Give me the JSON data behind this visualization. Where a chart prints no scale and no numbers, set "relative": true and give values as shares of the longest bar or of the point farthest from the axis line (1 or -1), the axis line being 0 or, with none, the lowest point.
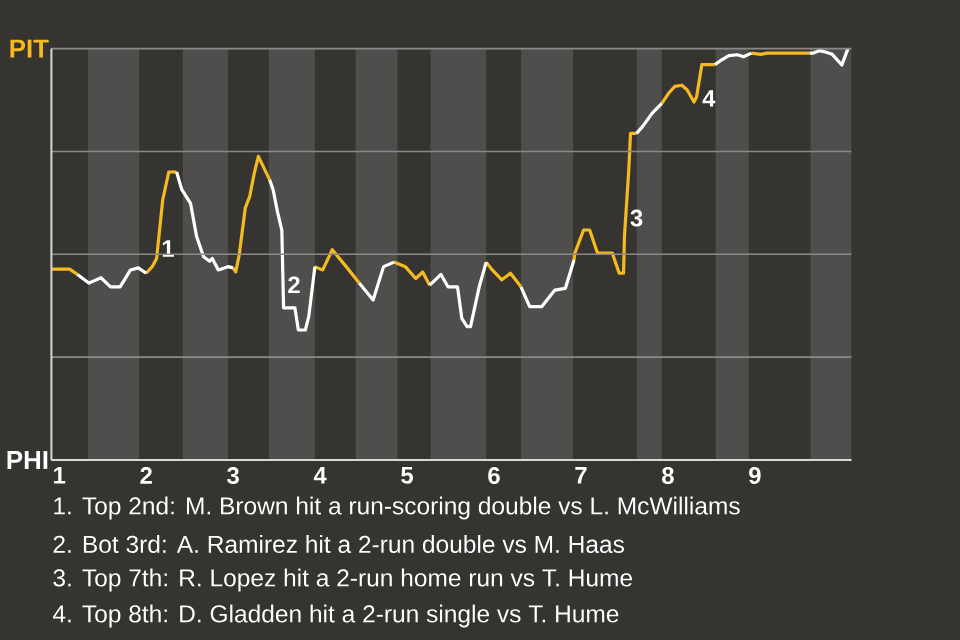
{
  "chart_data": {
    "type": "line",
    "relative": true,
    "xlim": [
      0.91,
      10.11
    ],
    "xticks": [
      1,
      2,
      3,
      4,
      5,
      6,
      7,
      8,
      9
    ],
    "grid": "y",
    "bands": [
      {
        "axis": "x",
        "from": 1.33,
        "to": 1.92,
        "color": "#4f4e4c"
      },
      {
        "axis": "x",
        "from": 2.42,
        "to": 2.94,
        "color": "#4f4e4c"
      },
      {
        "axis": "x",
        "from": 3.41,
        "to": 3.94,
        "color": "#4f4e4c"
      },
      {
        "axis": "x",
        "from": 4.41,
        "to": 4.89,
        "color": "#4f4e4c"
      },
      {
        "axis": "x",
        "from": 5.27,
        "to": 5.91,
        "color": "#4f4e4c"
      },
      {
        "axis": "x",
        "from": 6.31,
        "to": 6.91,
        "color": "#4f4e4c"
      },
      {
        "axis": "x",
        "from": 7.64,
        "to": 7.93,
        "color": "#4f4e4c"
      },
      {
        "axis": "x",
        "from": 8.55,
        "to": 8.93,
        "color": "#4f4e4c"
      },
      {
        "axis": "x",
        "from": 9.64,
        "to": 10.11,
        "color": "#4f4e4c"
      }
    ],
    "x": [
      0.91,
      1.12,
      1.21,
      1.34,
      1.48,
      1.59,
      1.7,
      1.82,
      1.91,
      2.0,
      2.07,
      2.12,
      2.19,
      2.26,
      2.35,
      2.41,
      2.51,
      2.58,
      2.66,
      2.73,
      2.76,
      2.83,
      2.94,
      3.0,
      3.03,
      3.07,
      3.14,
      3.19,
      3.24,
      3.29,
      3.34,
      3.42,
      3.46,
      3.51,
      3.56,
      3.58,
      3.71,
      3.75,
      3.83,
      3.87,
      3.94,
      3.97,
      4.03,
      4.14,
      4.3,
      4.45,
      4.61,
      4.73,
      4.85,
      4.98,
      5.1,
      5.18,
      5.26,
      5.34,
      5.39,
      5.47,
      5.58,
      5.63,
      5.69,
      5.73,
      5.83,
      5.91,
      5.98,
      6.09,
      6.19,
      6.31,
      6.41,
      6.55,
      6.7,
      6.82,
      6.92,
      6.93,
      7.03,
      7.1,
      7.19,
      7.36,
      7.44,
      7.49,
      7.5,
      7.55,
      7.57,
      7.64,
      7.71,
      7.82,
      7.93,
      8.01,
      8.08,
      8.16,
      8.22,
      8.3,
      8.33,
      8.39,
      8.54,
      8.6,
      8.7,
      8.8,
      8.87,
      8.96,
      9.07,
      9.14,
      9.63,
      9.67,
      9.74,
      9.81,
      9.89,
      10.0,
      10.07
    ],
    "series": [
      {
        "color": "#f5b921",
        "values": [
          0.464,
          0.464,
          0.451,
          null,
          null,
          null,
          null,
          null,
          null,
          0.454,
          0.47,
          0.49,
          0.632,
          0.7,
          0.7,
          null,
          null,
          null,
          null,
          null,
          null,
          null,
          null,
          0.467,
          0.457,
          0.499,
          0.613,
          0.64,
          0.694,
          0.738,
          0.716,
          0.681,
          null,
          null,
          null,
          null,
          null,
          null,
          null,
          null,
          0.47,
          0.467,
          0.462,
          0.511,
          0.47,
          0.43,
          null,
          null,
          0.481,
          0.47,
          0.441,
          0.457,
          0.425,
          null,
          null,
          null,
          null,
          null,
          null,
          null,
          null,
          0.481,
          0.462,
          0.438,
          0.454,
          0.421,
          null,
          null,
          null,
          null,
          0.486,
          0.503,
          0.559,
          0.559,
          0.503,
          0.503,
          0.454,
          0.454,
          0.543,
          0.705,
          0.794,
          0.794,
          null,
          null,
          0.867,
          0.892,
          0.908,
          0.911,
          0.9,
          0.87,
          0.883,
          0.961,
          0.961,
          null,
          null,
          null,
          null,
          0.989,
          0.986,
          0.989,
          0.989,
          null,
          null,
          null,
          null,
          null,
          null
        ]
      },
      {
        "color": "#ffffff",
        "values": [
          null,
          null,
          0.451,
          0.43,
          0.443,
          0.421,
          0.421,
          0.462,
          0.467,
          0.454,
          null,
          null,
          null,
          null,
          0.7,
          0.657,
          0.624,
          0.543,
          0.494,
          0.483,
          0.49,
          0.462,
          0.47,
          0.467,
          null,
          null,
          null,
          null,
          null,
          null,
          null,
          0.681,
          0.657,
          0.603,
          0.559,
          0.37,
          0.37,
          0.316,
          0.316,
          0.349,
          0.47,
          null,
          null,
          null,
          null,
          0.43,
          0.389,
          0.47,
          0.481,
          null,
          null,
          null,
          0.425,
          0.441,
          0.451,
          0.421,
          0.421,
          0.344,
          0.324,
          0.324,
          0.421,
          0.481,
          null,
          null,
          null,
          0.421,
          0.373,
          0.373,
          0.413,
          0.417,
          0.486,
          null,
          null,
          null,
          null,
          null,
          null,
          null,
          null,
          null,
          null,
          0.794,
          0.811,
          0.843,
          0.867,
          null,
          null,
          null,
          null,
          null,
          null,
          null,
          0.961,
          0.97,
          0.983,
          0.985,
          0.98,
          0.989,
          null,
          null,
          0.989,
          0.989,
          0.995,
          0.992,
          0.986,
          0.96,
          1.0
        ]
      }
    ],
    "annotations": [
      "PIT",
      "PHI",
      {
        "text": "1",
        "x": 2.25,
        "y": 0.514
      },
      {
        "text": "2",
        "x": 3.7,
        "y": 0.426
      },
      {
        "text": "3",
        "x": 7.64,
        "y": 0.588
      },
      {
        "text": "4",
        "x": 8.47,
        "y": 0.879
      },
      "1. Top 2nd: M. Brown hit a run-scoring double vs L. McWilliams",
      "2. Bot 3rd: A. Ramirez hit a 2-run double vs M. Haas",
      "3. Top 7th: R. Lopez hit a 2-run home run vs T. Hume",
      "4. Top 8th: D. Gladden hit a 2-run single vs T. Hume"
    ]
  }
}
